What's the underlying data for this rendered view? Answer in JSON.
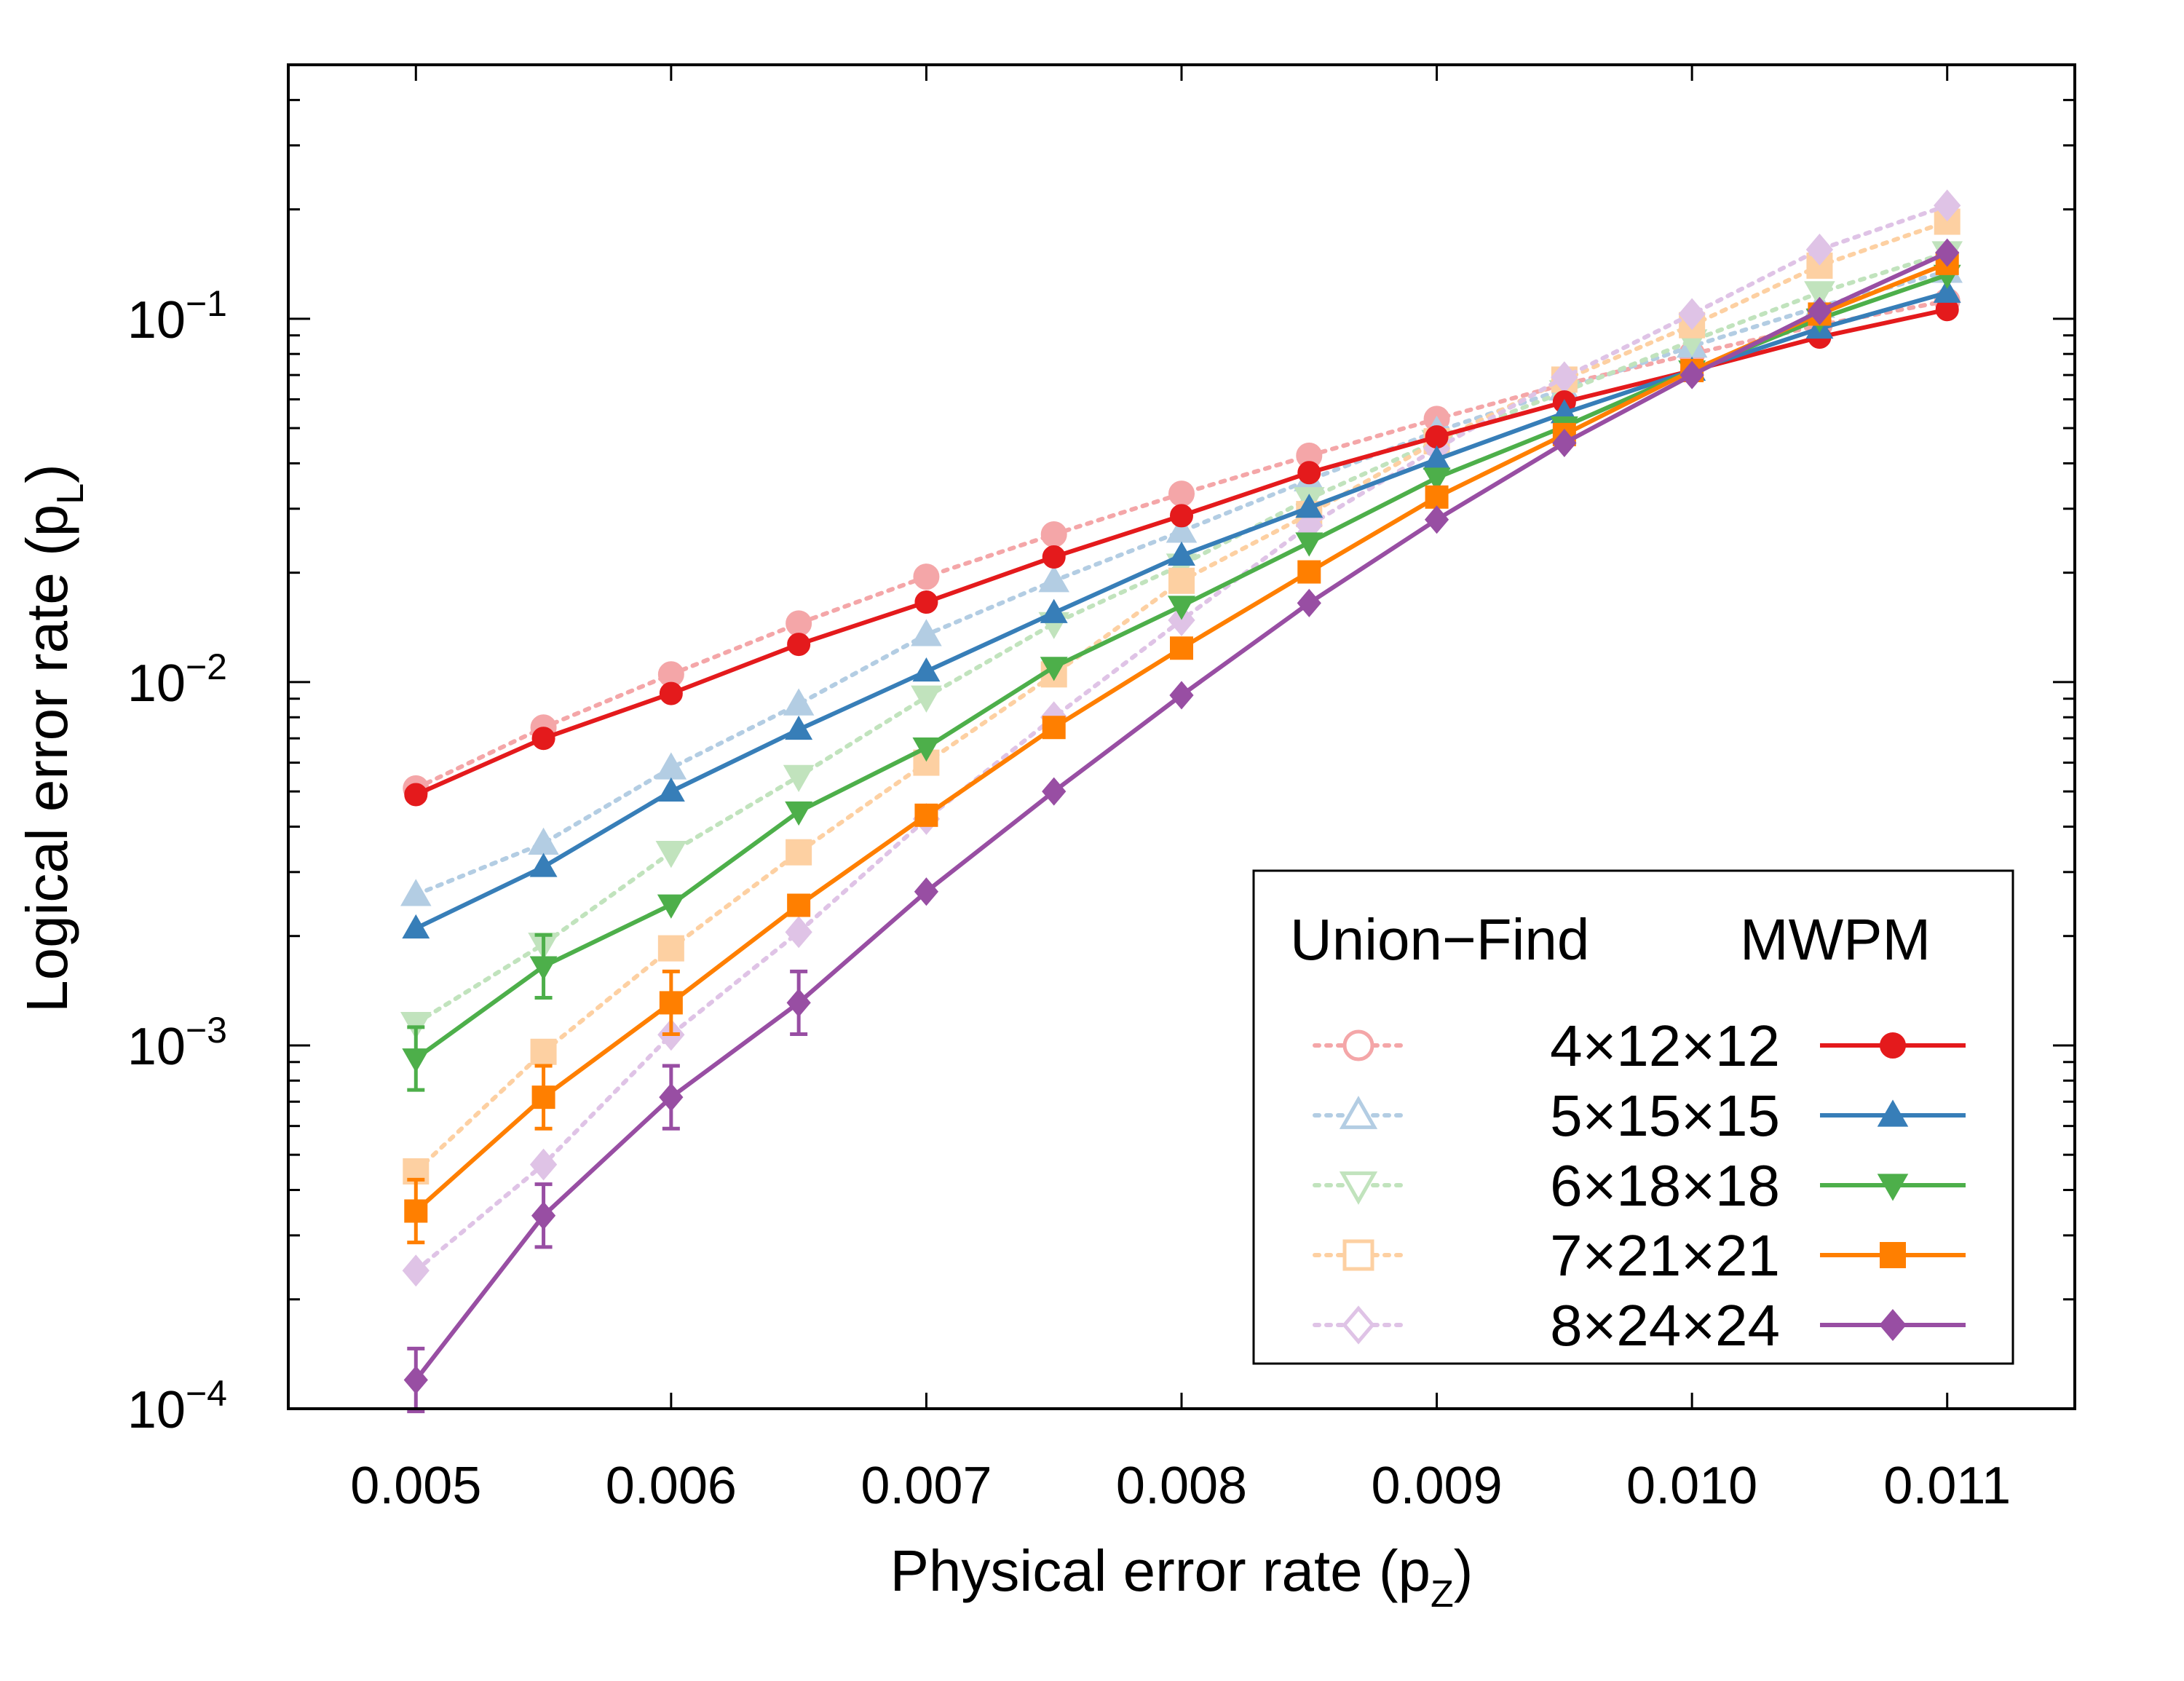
{
  "chart_data": {
    "type": "line",
    "xlabel": "Physical error rate (p",
    "xlabel_sub": "Z",
    "ylabel": "Logical error rate (p",
    "ylabel_sub": "L",
    "xlim": [
      0.0045,
      0.0115
    ],
    "ylim": [
      0.0001,
      0.5
    ],
    "yscale": "log",
    "x_ticks": [
      "0.005",
      "0.006",
      "0.007",
      "0.008",
      "0.009",
      "0.010",
      "0.011"
    ],
    "y_ticks": [
      {
        "base": "10",
        "exp": "−4",
        "value": 0.0001
      },
      {
        "base": "10",
        "exp": "−3",
        "value": 0.001
      },
      {
        "base": "10",
        "exp": "−2",
        "value": 0.01
      },
      {
        "base": "10",
        "exp": "−1",
        "value": 0.1
      }
    ],
    "legend": {
      "placement": "bottom-right",
      "header_left": "Union−Find",
      "header_right": "MWPM"
    },
    "x": [
      0.005,
      0.0055,
      0.006,
      0.0065,
      0.007,
      0.0075,
      0.008,
      0.0085,
      0.009,
      0.0095,
      0.01,
      0.0105,
      0.011
    ],
    "series": [
      {
        "name": "4×12×12",
        "color": "#e41a1c",
        "light_color": "#f4a6a8",
        "marker": "circle",
        "uf": [
          0.0051,
          0.0075,
          0.0105,
          0.0145,
          0.0195,
          0.0255,
          0.033,
          0.042,
          0.053,
          0.066,
          0.08,
          0.096,
          0.112
        ],
        "mwpm": [
          0.0049,
          0.007,
          0.0093,
          0.0127,
          0.0166,
          0.0221,
          0.0287,
          0.0377,
          0.0473,
          0.059,
          0.072,
          0.089,
          0.106
        ]
      },
      {
        "name": "5×15×15",
        "color": "#377eb8",
        "light_color": "#b3cde3",
        "marker": "triangle-up",
        "uf": [
          0.0026,
          0.0036,
          0.0058,
          0.0087,
          0.0135,
          0.019,
          0.026,
          0.036,
          0.049,
          0.064,
          0.084,
          0.108,
          0.135
        ],
        "mwpm": [
          0.0021,
          0.0031,
          0.005,
          0.0074,
          0.0107,
          0.0155,
          0.0223,
          0.0302,
          0.041,
          0.055,
          0.072,
          0.094,
          0.118
        ]
      },
      {
        "name": "6×18×18",
        "color": "#4daf4a",
        "light_color": "#c1e3bd",
        "marker": "triangle-down",
        "uf": [
          0.00115,
          0.0019,
          0.0034,
          0.0055,
          0.0091,
          0.0145,
          0.021,
          0.032,
          0.046,
          0.063,
          0.087,
          0.118,
          0.152
        ],
        "mwpm": [
          0.00092,
          0.00165,
          0.00244,
          0.0044,
          0.0066,
          0.011,
          0.0162,
          0.0242,
          0.0365,
          0.0505,
          0.072,
          0.1,
          0.132
        ]
      },
      {
        "name": "7×21×21",
        "color": "#ff7f00",
        "light_color": "#fdd0a2",
        "marker": "square",
        "uf": [
          0.00045,
          0.00096,
          0.00185,
          0.0034,
          0.006,
          0.0105,
          0.019,
          0.029,
          0.046,
          0.068,
          0.096,
          0.14,
          0.185
        ],
        "mwpm": [
          0.00035,
          0.00072,
          0.00131,
          0.00243,
          0.0043,
          0.0075,
          0.0124,
          0.0201,
          0.0323,
          0.048,
          0.072,
          0.103,
          0.142
        ]
      },
      {
        "name": "8×24×24",
        "color": "#984ea3",
        "light_color": "#dfc3e6",
        "marker": "diamond",
        "uf": [
          0.00024,
          0.00047,
          0.00107,
          0.00205,
          0.0042,
          0.008,
          0.0148,
          0.027,
          0.044,
          0.069,
          0.103,
          0.155,
          0.205
        ],
        "mwpm": [
          0.00012,
          0.00034,
          0.00072,
          0.00131,
          0.00265,
          0.005,
          0.0092,
          0.0165,
          0.028,
          0.0455,
          0.07,
          0.105,
          0.152
        ]
      }
    ]
  }
}
